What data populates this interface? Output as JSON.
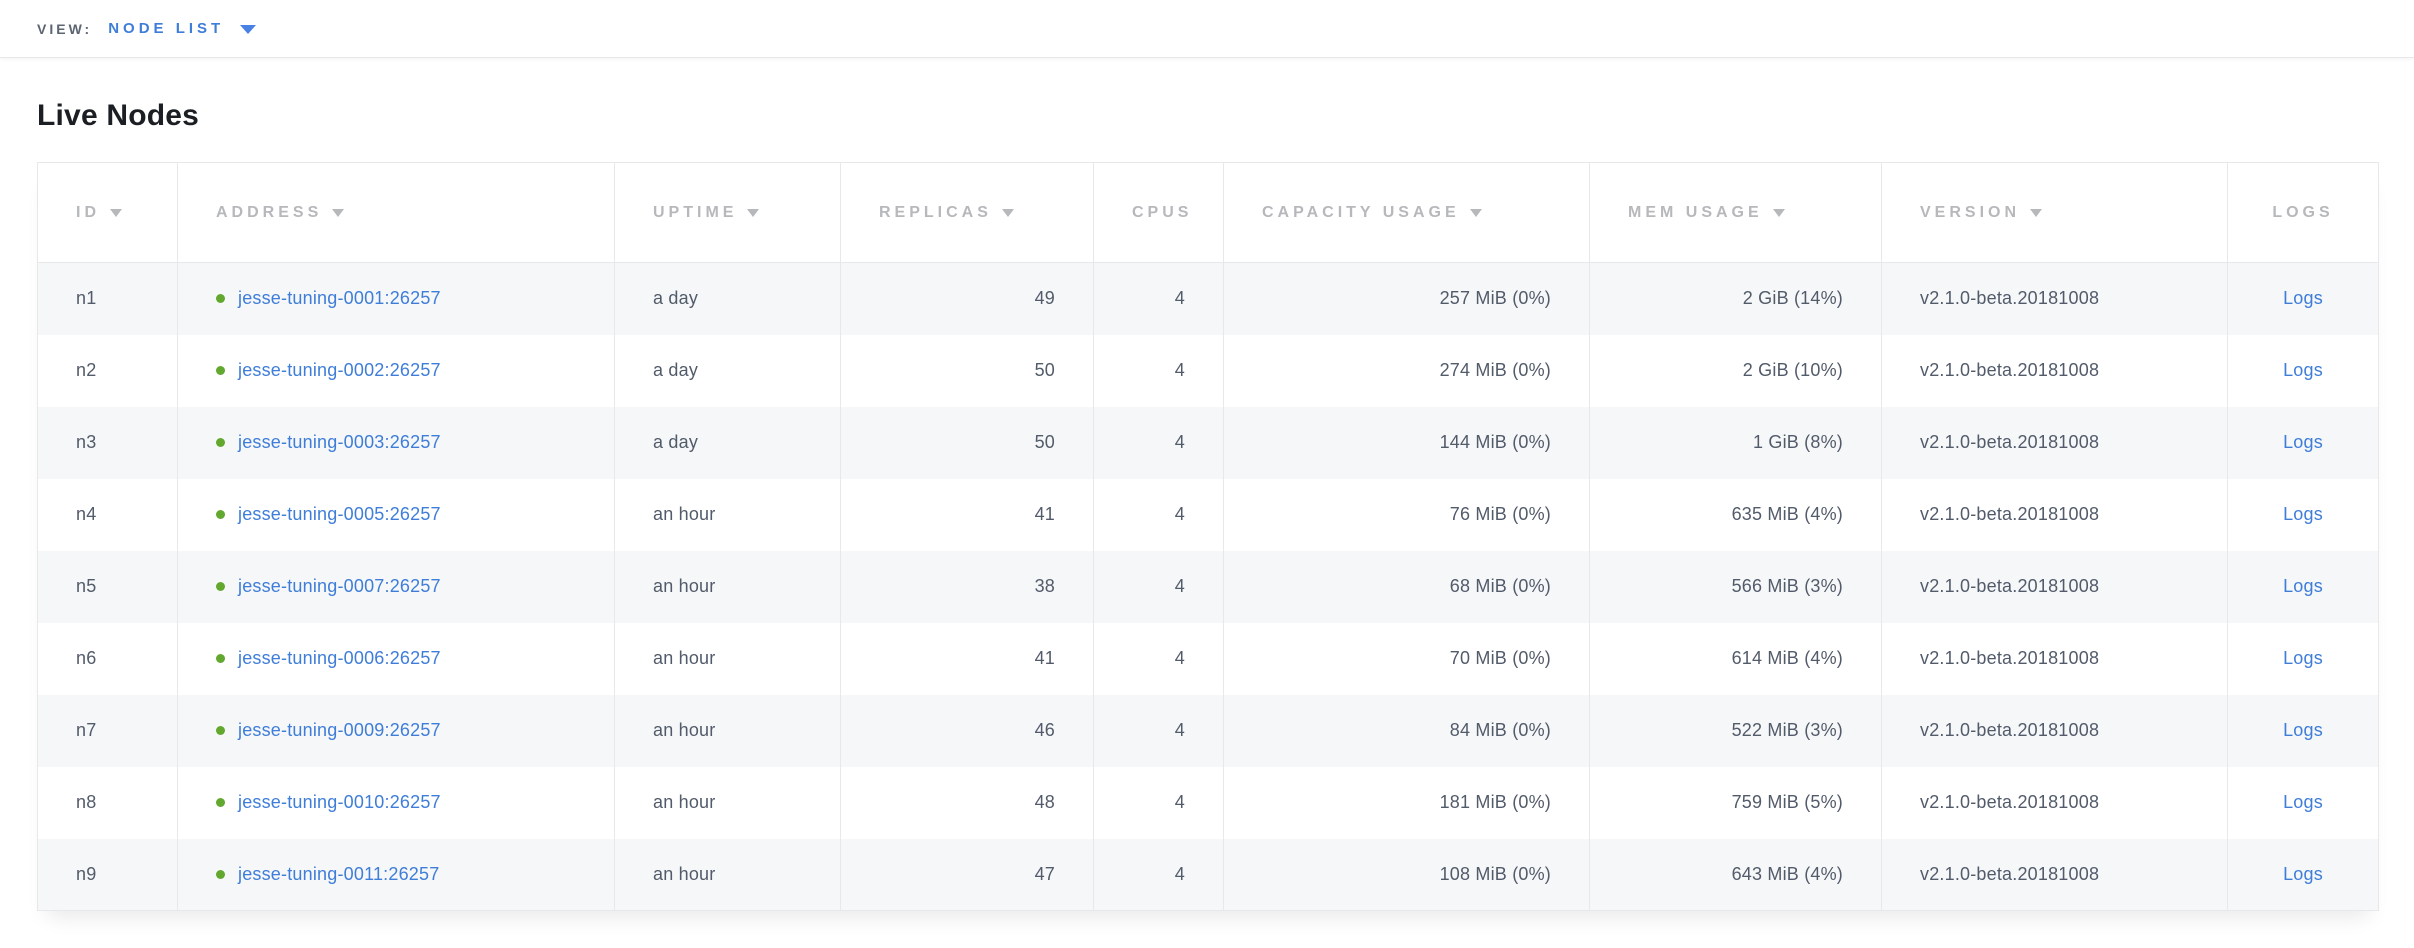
{
  "view_bar": {
    "label": "VIEW:",
    "selected": "NODE LIST"
  },
  "page": {
    "title": "Live Nodes"
  },
  "table": {
    "columns": [
      {
        "key": "id",
        "label": "ID",
        "sortable": true,
        "align": "left"
      },
      {
        "key": "address",
        "label": "ADDRESS",
        "sortable": true,
        "align": "left"
      },
      {
        "key": "uptime",
        "label": "UPTIME",
        "sortable": true,
        "align": "left"
      },
      {
        "key": "replicas",
        "label": "REPLICAS",
        "sortable": true,
        "align": "right"
      },
      {
        "key": "cpus",
        "label": "CPUS",
        "sortable": false,
        "align": "right"
      },
      {
        "key": "capacity",
        "label": "CAPACITY USAGE",
        "sortable": true,
        "align": "right"
      },
      {
        "key": "mem",
        "label": "MEM USAGE",
        "sortable": true,
        "align": "right"
      },
      {
        "key": "version",
        "label": "VERSION",
        "sortable": true,
        "align": "left"
      },
      {
        "key": "logs",
        "label": "LOGS",
        "sortable": false,
        "align": "center"
      }
    ],
    "rows": [
      {
        "id": "n1",
        "address": "jesse-tuning-0001:26257",
        "uptime": "a day",
        "replicas": "49",
        "cpus": "4",
        "capacity": "257 MiB (0%)",
        "mem": "2 GiB (14%)",
        "version": "v2.1.0-beta.20181008",
        "logs": "Logs"
      },
      {
        "id": "n2",
        "address": "jesse-tuning-0002:26257",
        "uptime": "a day",
        "replicas": "50",
        "cpus": "4",
        "capacity": "274 MiB (0%)",
        "mem": "2 GiB (10%)",
        "version": "v2.1.0-beta.20181008",
        "logs": "Logs"
      },
      {
        "id": "n3",
        "address": "jesse-tuning-0003:26257",
        "uptime": "a day",
        "replicas": "50",
        "cpus": "4",
        "capacity": "144 MiB (0%)",
        "mem": "1 GiB (8%)",
        "version": "v2.1.0-beta.20181008",
        "logs": "Logs"
      },
      {
        "id": "n4",
        "address": "jesse-tuning-0005:26257",
        "uptime": "an hour",
        "replicas": "41",
        "cpus": "4",
        "capacity": "76 MiB (0%)",
        "mem": "635 MiB (4%)",
        "version": "v2.1.0-beta.20181008",
        "logs": "Logs"
      },
      {
        "id": "n5",
        "address": "jesse-tuning-0007:26257",
        "uptime": "an hour",
        "replicas": "38",
        "cpus": "4",
        "capacity": "68 MiB (0%)",
        "mem": "566 MiB (3%)",
        "version": "v2.1.0-beta.20181008",
        "logs": "Logs"
      },
      {
        "id": "n6",
        "address": "jesse-tuning-0006:26257",
        "uptime": "an hour",
        "replicas": "41",
        "cpus": "4",
        "capacity": "70 MiB (0%)",
        "mem": "614 MiB (4%)",
        "version": "v2.1.0-beta.20181008",
        "logs": "Logs"
      },
      {
        "id": "n7",
        "address": "jesse-tuning-0009:26257",
        "uptime": "an hour",
        "replicas": "46",
        "cpus": "4",
        "capacity": "84 MiB (0%)",
        "mem": "522 MiB (3%)",
        "version": "v2.1.0-beta.20181008",
        "logs": "Logs"
      },
      {
        "id": "n8",
        "address": "jesse-tuning-0010:26257",
        "uptime": "an hour",
        "replicas": "48",
        "cpus": "4",
        "capacity": "181 MiB (0%)",
        "mem": "759 MiB (5%)",
        "version": "v2.1.0-beta.20181008",
        "logs": "Logs"
      },
      {
        "id": "n9",
        "address": "jesse-tuning-0011:26257",
        "uptime": "an hour",
        "replicas": "47",
        "cpus": "4",
        "capacity": "108 MiB (0%)",
        "mem": "643 MiB (4%)",
        "version": "v2.1.0-beta.20181008",
        "logs": "Logs"
      }
    ]
  },
  "colors": {
    "link_blue": "#3e7dd8",
    "accent_blue": "#4a81e4",
    "status_green": "#62a82e",
    "header_gray": "#b6b8bb",
    "cell_text": "#525b6a",
    "stripe_bg": "#f6f7f8"
  }
}
